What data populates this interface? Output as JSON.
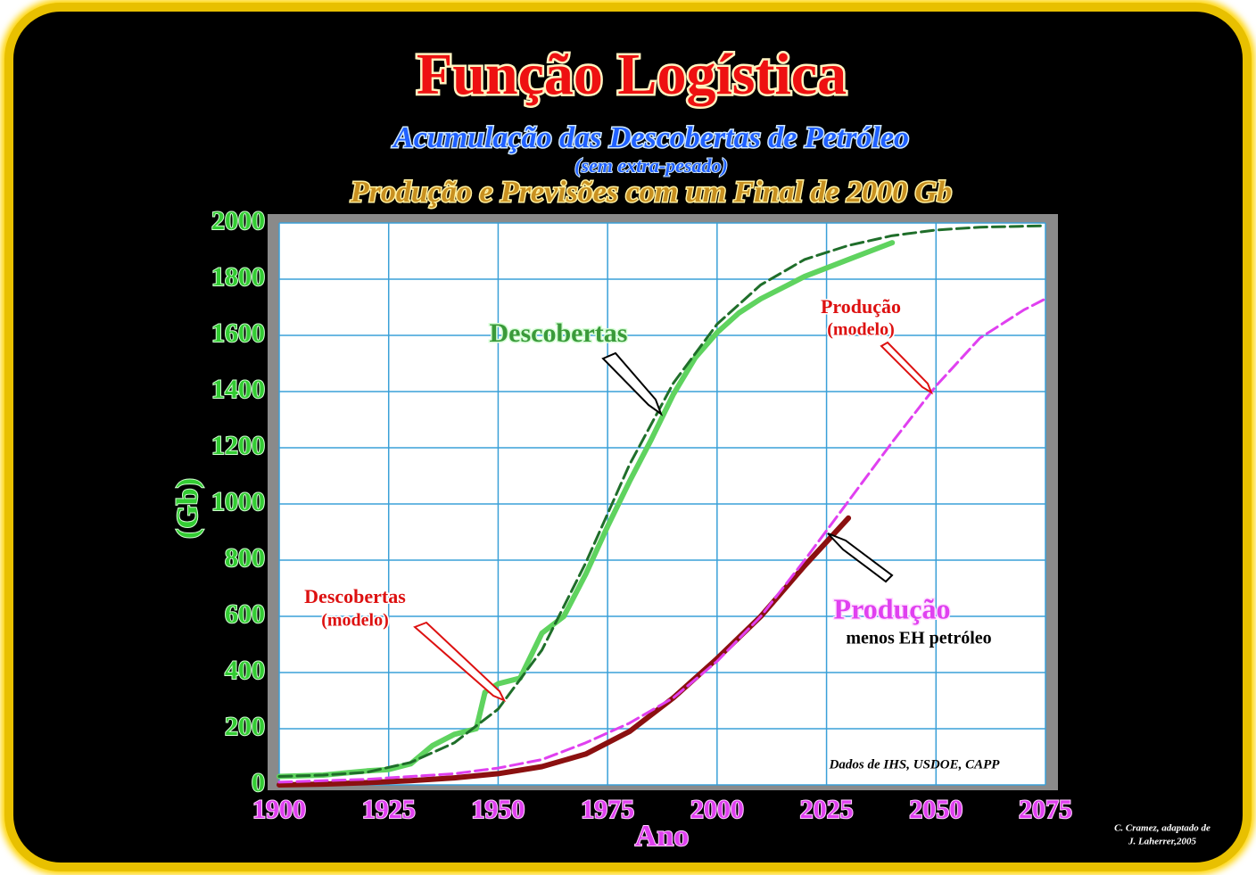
{
  "chart_data": {
    "type": "line",
    "title": "Função Logística",
    "subtitle": "Acumulação das Descobertas de Petróleo",
    "note": "(sem extra-pesado)",
    "subtitle2": "Produção e Previsões com um Final de 2000 Gb",
    "ylabel": "(Gb)",
    "xlabel": "Ano",
    "xlim": [
      1900,
      2075
    ],
    "ylim": [
      0,
      2000
    ],
    "xticks": [
      1900,
      1925,
      1950,
      1975,
      2000,
      2025,
      2050,
      2075
    ],
    "yticks": [
      0,
      200,
      400,
      600,
      800,
      1000,
      1200,
      1400,
      1600,
      1800,
      2000
    ],
    "grid": true,
    "series": [
      {
        "name": "Descobertas",
        "color": "#5fd35f",
        "dashed": false,
        "x": [
          1900,
          1910,
          1920,
          1925,
          1930,
          1935,
          1940,
          1945,
          1947,
          1950,
          1955,
          1960,
          1965,
          1970,
          1975,
          1980,
          1985,
          1990,
          1995,
          2000,
          2005,
          2010,
          2015,
          2020,
          2025,
          2030,
          2035,
          2040
        ],
        "values": [
          30,
          35,
          50,
          55,
          75,
          140,
          180,
          200,
          330,
          360,
          380,
          540,
          600,
          750,
          920,
          1080,
          1230,
          1390,
          1520,
          1610,
          1680,
          1730,
          1770,
          1810,
          1840,
          1870,
          1900,
          1930
        ]
      },
      {
        "color": "#1f6e2a",
        "dashed": true,
        "x": [
          1900,
          1910,
          1920,
          1930,
          1940,
          1950,
          1960,
          1970,
          1980,
          1990,
          2000,
          2010,
          2020,
          2030,
          2040,
          2050,
          2060,
          2075
        ],
        "values": [
          30,
          35,
          45,
          80,
          150,
          270,
          480,
          790,
          1140,
          1430,
          1640,
          1780,
          1870,
          1920,
          1955,
          1975,
          1985,
          1990
        ]
      },
      {
        "name": "Produção",
        "color": "#8b1010",
        "dashed": false,
        "x": [
          1900,
          1910,
          1920,
          1930,
          1940,
          1950,
          1960,
          1970,
          1980,
          1990,
          2000,
          2010,
          2020,
          2030
        ],
        "values": [
          0,
          3,
          8,
          15,
          25,
          40,
          65,
          110,
          190,
          310,
          450,
          600,
          780,
          950
        ]
      },
      {
        "color": "#e040f0",
        "dashed": true,
        "x": [
          1900,
          1920,
          1940,
          1950,
          1960,
          1970,
          1980,
          1990,
          2000,
          2010,
          2020,
          2030,
          2040,
          2050,
          2060,
          2070,
          2075
        ],
        "values": [
          10,
          20,
          40,
          60,
          90,
          150,
          220,
          310,
          440,
          600,
          800,
          1010,
          1220,
          1420,
          1590,
          1690,
          1730
        ]
      }
    ],
    "annotations": [
      {
        "lines": [
          "Descobertas",
          "(modelo)"
        ]
      },
      {
        "lines": [
          "Produção",
          "(modelo)"
        ]
      },
      {
        "lines": [
          "menos EH petróleo"
        ]
      },
      {
        "lines": [
          "Dados de IHS, USDOE, CAPP"
        ]
      },
      {
        "lines": [
          "C. Cramez, adaptado de",
          "J. Laherrer,2005"
        ]
      }
    ]
  }
}
